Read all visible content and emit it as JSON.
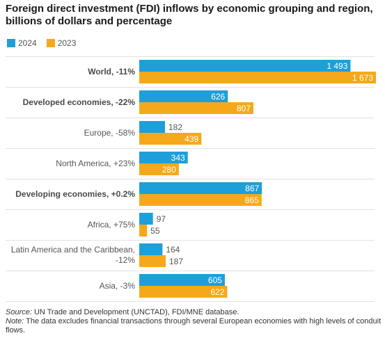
{
  "title": "Foreign direct investment (FDI) inflows by economic grouping and region, billions of dollars and percentage",
  "legend": [
    {
      "label": "2024",
      "color": "#1f9fd9"
    },
    {
      "label": "2023",
      "color": "#f5a91a"
    }
  ],
  "chart_data": {
    "type": "bar",
    "orientation": "horizontal",
    "categories": [
      {
        "label": "World, -11%",
        "bold": true
      },
      {
        "label": "Developed economies, -22%",
        "bold": true
      },
      {
        "label": "Europe, -58%",
        "bold": false
      },
      {
        "label": "North America, +23%",
        "bold": false
      },
      {
        "label": "Developing economies, +0.2%",
        "bold": true
      },
      {
        "label": "Africa, +75%",
        "bold": false
      },
      {
        "label": "Latin America and the Caribbean, -12%",
        "bold": false
      },
      {
        "label": "Asia, -3%",
        "bold": false
      }
    ],
    "series": [
      {
        "name": "2024",
        "color": "#1f9fd9",
        "values": [
          1493,
          626,
          182,
          343,
          867,
          97,
          164,
          605
        ],
        "labels": [
          "1 493",
          "626",
          "182",
          "343",
          "867",
          "97",
          "164",
          "605"
        ]
      },
      {
        "name": "2023",
        "color": "#f5a91a",
        "values": [
          1673,
          807,
          439,
          280,
          865,
          55,
          187,
          622
        ],
        "labels": [
          "1 673",
          "807",
          "439",
          "280",
          "865",
          "55",
          "187",
          "622"
        ]
      }
    ],
    "xlim": [
      0,
      1673
    ]
  },
  "footer": {
    "source_label": "Source:",
    "source_text": " UN Trade and Development (UNCTAD), FDI/MNE database.",
    "note_label": "Note:",
    "note_text": " The data excludes financial transactions through several European economies with high levels of conduit flows."
  }
}
